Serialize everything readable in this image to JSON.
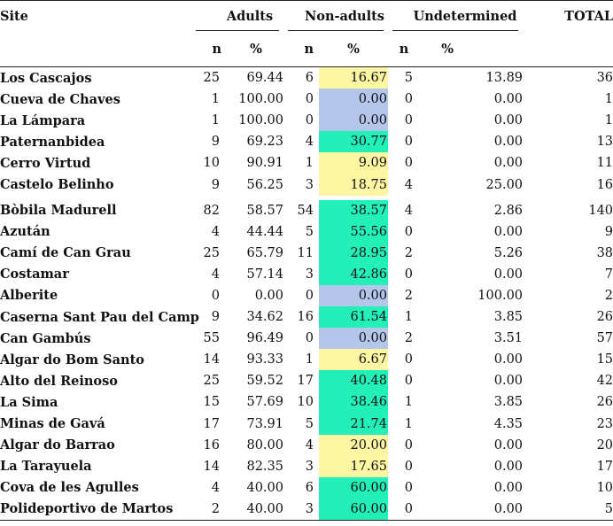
{
  "header": {
    "site": "Site",
    "adults": "Adults",
    "non_adults": "Non-adults",
    "undetermined": "Undetermined",
    "total": "TOTAL",
    "n": "n",
    "pct": "%"
  },
  "colors": {
    "yellow": "#fdf6a3",
    "blue": "#b4c6ea",
    "green": "#22f0b8"
  },
  "rows": [
    {
      "site": "Los Cascajos",
      "adults_n": "25",
      "adults_pct": "69.44",
      "non_n": "6",
      "non_pct": "16.67",
      "und_n": "5",
      "und_pct": "13.89",
      "total": "36",
      "hl": "yellow"
    },
    {
      "site": "Cueva de Chaves",
      "adults_n": "1",
      "adults_pct": "100.00",
      "non_n": "0",
      "non_pct": "0.00",
      "und_n": "0",
      "und_pct": "0.00",
      "total": "1",
      "hl": "blue"
    },
    {
      "site": "La Lámpara",
      "adults_n": "1",
      "adults_pct": "100.00",
      "non_n": "0",
      "non_pct": "0.00",
      "und_n": "0",
      "und_pct": "0.00",
      "total": "1",
      "hl": "blue"
    },
    {
      "site": "Paternanbidea",
      "adults_n": "9",
      "adults_pct": "69.23",
      "non_n": "4",
      "non_pct": "30.77",
      "und_n": "0",
      "und_pct": "0.00",
      "total": "13",
      "hl": "green"
    },
    {
      "site": "Cerro Virtud",
      "adults_n": "10",
      "adults_pct": "90.91",
      "non_n": "1",
      "non_pct": "9.09",
      "und_n": "0",
      "und_pct": "0.00",
      "total": "11",
      "hl": "yellow"
    },
    {
      "site": "Castelo Belinho",
      "adults_n": "9",
      "adults_pct": "56.25",
      "non_n": "3",
      "non_pct": "18.75",
      "und_n": "4",
      "und_pct": "25.00",
      "total": "16",
      "hl": "yellow"
    },
    {
      "site": "Bòbila Madurell",
      "adults_n": "82",
      "adults_pct": "58.57",
      "non_n": "54",
      "non_pct": "38.57",
      "und_n": "4",
      "und_pct": "2.86",
      "total": "140",
      "hl": "green"
    },
    {
      "site": "Azután",
      "adults_n": "4",
      "adults_pct": "44.44",
      "non_n": "5",
      "non_pct": "55.56",
      "und_n": "0",
      "und_pct": "0.00",
      "total": "9",
      "hl": "green"
    },
    {
      "site": "Camí de Can Grau",
      "adults_n": "25",
      "adults_pct": "65.79",
      "non_n": "11",
      "non_pct": "28.95",
      "und_n": "2",
      "und_pct": "5.26",
      "total": "38",
      "hl": "green"
    },
    {
      "site": "Costamar",
      "adults_n": "4",
      "adults_pct": "57.14",
      "non_n": "3",
      "non_pct": "42.86",
      "und_n": "0",
      "und_pct": "0.00",
      "total": "7",
      "hl": "green"
    },
    {
      "site": "Alberite",
      "adults_n": "0",
      "adults_pct": "0.00",
      "non_n": "0",
      "non_pct": "0.00",
      "und_n": "2",
      "und_pct": "100.00",
      "total": "2",
      "hl": "blue"
    },
    {
      "site": "Caserna Sant Pau del Camp",
      "adults_n": "9",
      "adults_pct": "34.62",
      "non_n": "16",
      "non_pct": "61.54",
      "und_n": "1",
      "und_pct": "3.85",
      "total": "26",
      "hl": "green"
    },
    {
      "site": "Can Gambús",
      "adults_n": "55",
      "adults_pct": "96.49",
      "non_n": "0",
      "non_pct": "0.00",
      "und_n": "2",
      "und_pct": "3.51",
      "total": "57",
      "hl": "blue"
    },
    {
      "site": "Algar do Bom Santo",
      "adults_n": "14",
      "adults_pct": "93.33",
      "non_n": "1",
      "non_pct": "6.67",
      "und_n": "0",
      "und_pct": "0.00",
      "total": "15",
      "hl": "yellow"
    },
    {
      "site": "Alto del Reinoso",
      "adults_n": "25",
      "adults_pct": "59.52",
      "non_n": "17",
      "non_pct": "40.48",
      "und_n": "0",
      "und_pct": "0.00",
      "total": "42",
      "hl": "green"
    },
    {
      "site": "La Sima",
      "adults_n": "15",
      "adults_pct": "57.69",
      "non_n": "10",
      "non_pct": "38.46",
      "und_n": "1",
      "und_pct": "3.85",
      "total": "26",
      "hl": "green"
    },
    {
      "site": "Minas de Gavá",
      "adults_n": "17",
      "adults_pct": "73.91",
      "non_n": "5",
      "non_pct": "21.74",
      "und_n": "1",
      "und_pct": "4.35",
      "total": "23",
      "hl": "green"
    },
    {
      "site": "Algar do Barrao",
      "adults_n": "16",
      "adults_pct": "80.00",
      "non_n": "4",
      "non_pct": "20.00",
      "und_n": "0",
      "und_pct": "0.00",
      "total": "20",
      "hl": "yellow"
    },
    {
      "site": "La Tarayuela",
      "adults_n": "14",
      "adults_pct": "82.35",
      "non_n": "3",
      "non_pct": "17.65",
      "und_n": "0",
      "und_pct": "0.00",
      "total": "17",
      "hl": "yellow"
    },
    {
      "site": "Cova de les Agulles",
      "adults_n": "4",
      "adults_pct": "40.00",
      "non_n": "6",
      "non_pct": "60.00",
      "und_n": "0",
      "und_pct": "0.00",
      "total": "10",
      "hl": "green"
    },
    {
      "site": "Polideportivo de Martos",
      "adults_n": "2",
      "adults_pct": "40.00",
      "non_n": "3",
      "non_pct": "60.00",
      "und_n": "0",
      "und_pct": "0.00",
      "total": "5",
      "hl": "green"
    }
  ]
}
